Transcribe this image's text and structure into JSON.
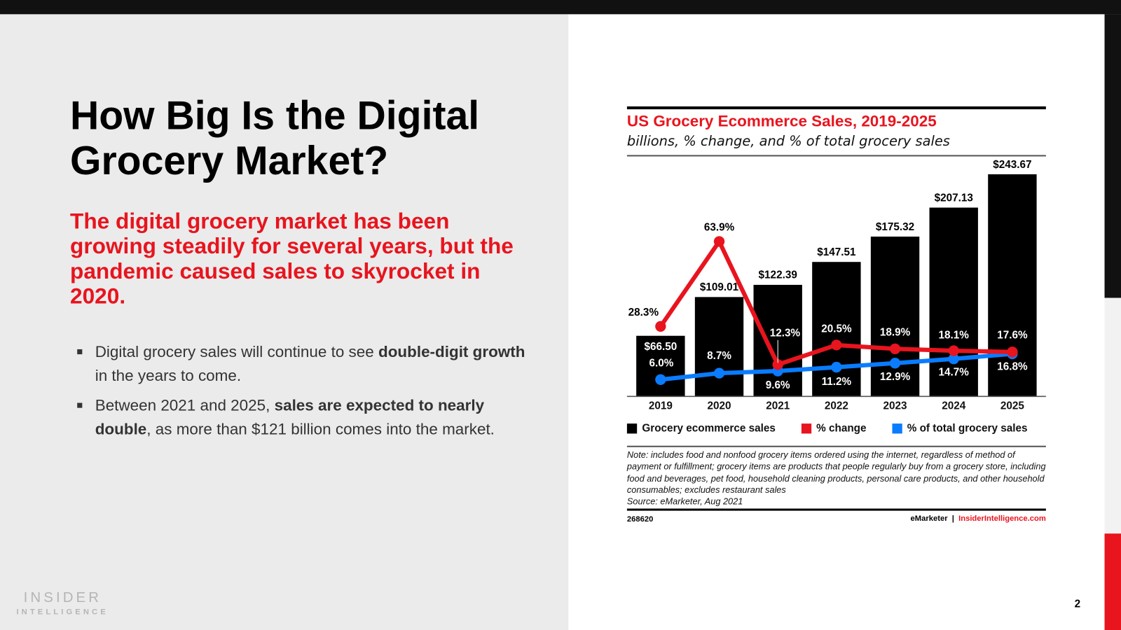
{
  "slide": {
    "title": "How Big Is the Digital Grocery Market?",
    "subtitle": "The digital grocery market has been growing steadily for several years, but the pandemic caused sales to skyrocket in 2020.",
    "bullets": [
      {
        "parts": [
          {
            "text": "Digital grocery sales will continue to see ",
            "bold": false
          },
          {
            "text": "double-digit growth",
            "bold": true
          },
          {
            "text": " in the years to come.",
            "bold": false
          }
        ]
      },
      {
        "parts": [
          {
            "text": "Between 2021 and 2025, ",
            "bold": false
          },
          {
            "text": "sales are expected to nearly double",
            "bold": true
          },
          {
            "text": ", as more than $121 billion comes into the market.",
            "bold": false
          }
        ]
      }
    ],
    "logo_line1": "INSIDER",
    "logo_line2": "INTELLIGENCE",
    "page_number": "2"
  },
  "chart_data": {
    "type": "bar",
    "title": "US Grocery Ecommerce Sales, 2019-2025",
    "subtitle": "billions, % change, and % of total grocery sales",
    "categories": [
      "2019",
      "2020",
      "2021",
      "2022",
      "2023",
      "2024",
      "2025"
    ],
    "series": [
      {
        "name": "Grocery ecommerce sales",
        "type": "bar",
        "color": "#000000",
        "values": [
          66.5,
          109.01,
          122.39,
          147.51,
          175.32,
          207.13,
          243.67
        ],
        "labels": [
          "$66.50",
          "$109.01",
          "$122.39",
          "$147.51",
          "$175.32",
          "$207.13",
          "$243.67"
        ]
      },
      {
        "name": "% change",
        "type": "line",
        "color": "#e8141e",
        "values": [
          28.3,
          63.9,
          12.3,
          20.5,
          18.9,
          18.1,
          17.6
        ],
        "labels": [
          "28.3%",
          "63.9%",
          "12.3%",
          "20.5%",
          "18.9%",
          "18.1%",
          "17.6%"
        ]
      },
      {
        "name": "% of total grocery sales",
        "type": "line",
        "color": "#0a7cff",
        "values": [
          6.0,
          8.7,
          9.6,
          11.2,
          12.9,
          14.7,
          16.8
        ],
        "labels": [
          "6.0%",
          "8.7%",
          "9.6%",
          "11.2%",
          "12.9%",
          "14.7%",
          "16.8%"
        ]
      }
    ],
    "legend_position": "bottom",
    "grid": false,
    "note": "Note: includes food and nonfood grocery items ordered using the internet, regardless of method of payment or fulfillment; grocery items are products that people regularly buy from a grocery store, including food and beverages, pet food, household cleaning products, personal care products, and other household consumables; excludes restaurant sales",
    "source": "Source: eMarketer, Aug 2021",
    "chart_id": "268620",
    "brand": "eMarketer",
    "separator": "|",
    "site": "InsiderIntelligence.com"
  }
}
